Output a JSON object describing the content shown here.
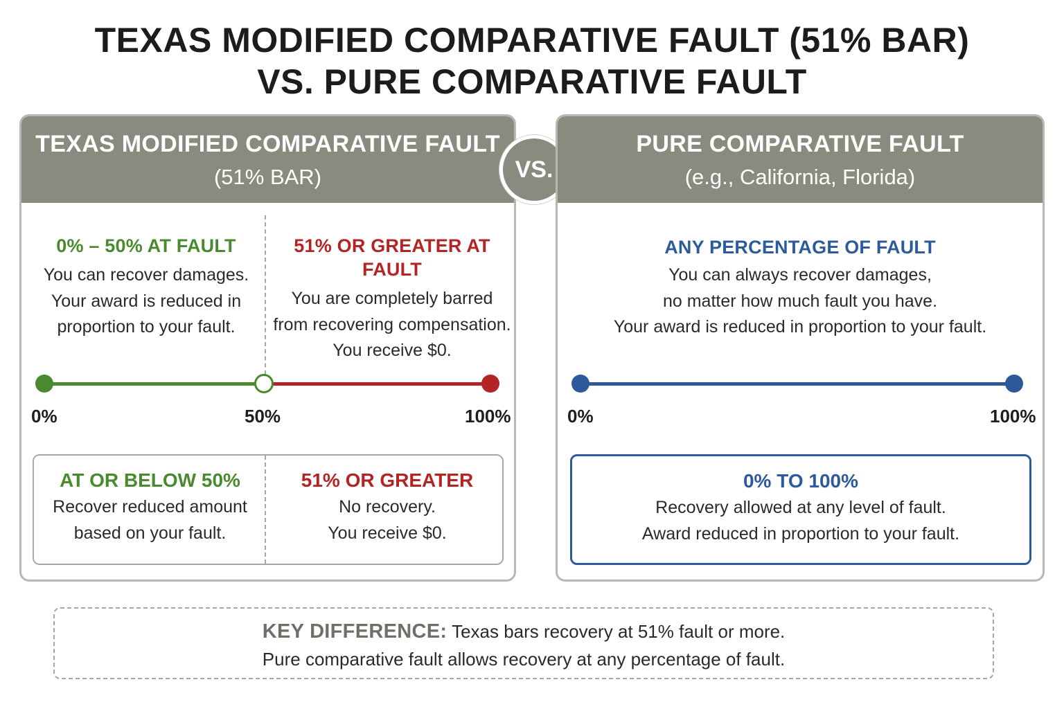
{
  "title": {
    "line1": "TEXAS MODIFIED COMPARATIVE FAULT (51% BAR)",
    "line2": "VS. PURE COMPARATIVE FAULT"
  },
  "vs_label": "VS.",
  "colors": {
    "header_gray": "#8a8a7f",
    "green": "#4a8a2e",
    "red": "#b32424",
    "blue": "#2d5a9a"
  },
  "texas": {
    "header_title": "TEXAS MODIFIED COMPARATIVE FAULT",
    "header_sub": "(51% BAR)",
    "recover": {
      "heading": "0% – 50% AT FAULT",
      "text": "You can recover damages.\nYour award is reduced in\nproportion to your fault."
    },
    "barred": {
      "heading": "51% OR GREATER AT FAULT",
      "text": "You are completely barred\nfrom recovering compensation.\nYou receive $0."
    },
    "scale": {
      "start": "0%",
      "mid": "50%",
      "end": "100%",
      "threshold_percent": 50
    },
    "summary": {
      "left_heading": "AT OR BELOW 50%",
      "left_text": "Recover reduced amount\nbased on your fault.",
      "right_heading": "51% OR GREATER",
      "right_text": "No recovery.\nYou receive $0."
    }
  },
  "pure": {
    "header_title": "PURE COMPARATIVE FAULT",
    "header_sub": "(e.g., California, Florida)",
    "any": {
      "heading": "ANY PERCENTAGE OF FAULT",
      "text": "You can always recover damages,\nno matter how much fault you have.\nYour award is reduced in proportion to your fault."
    },
    "scale": {
      "start": "0%",
      "end": "100%"
    },
    "summary": {
      "heading": "0% TO 100%",
      "text": "Recovery allowed at any level of fault.\nAward reduced in proportion to your fault."
    }
  },
  "key_difference": {
    "label": "KEY DIFFERENCE:",
    "line1": "Texas bars recovery at 51% fault or more.",
    "line2": "Pure comparative fault allows recovery at any percentage of fault."
  }
}
